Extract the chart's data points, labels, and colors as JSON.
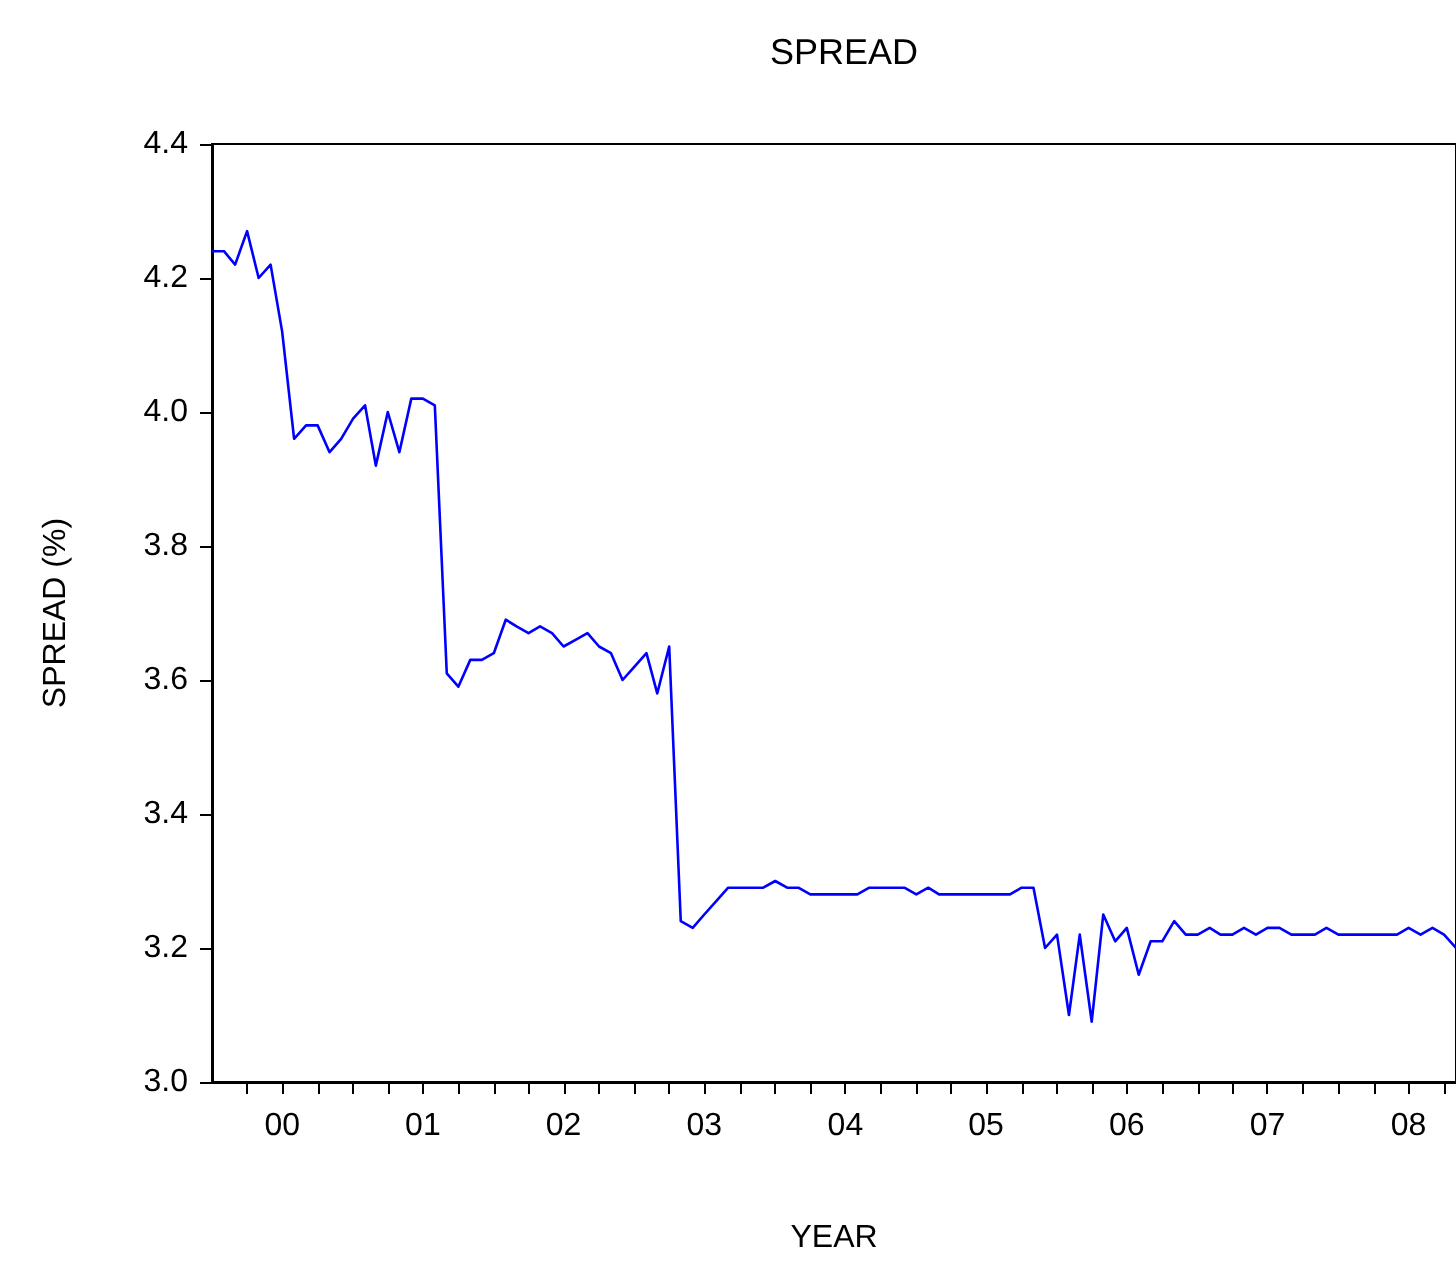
{
  "chart_data": {
    "type": "line",
    "title": "SPREAD",
    "xlabel": "YEAR",
    "ylabel": "SPREAD (%)",
    "xlim": [
      "2000-01",
      "2008-11"
    ],
    "xticks": [
      {
        "value": "2000-04",
        "label": null
      },
      {
        "value": "2000-07",
        "label": "00"
      },
      {
        "value": "2000-10",
        "label": null
      },
      {
        "value": "2001-01",
        "label": null
      },
      {
        "value": "2001-04",
        "label": null
      },
      {
        "value": "2001-07",
        "label": "01"
      },
      {
        "value": "2001-10",
        "label": null
      },
      {
        "value": "2002-01",
        "label": null
      },
      {
        "value": "2002-04",
        "label": null
      },
      {
        "value": "2002-07",
        "label": "02"
      },
      {
        "value": "2002-10",
        "label": null
      },
      {
        "value": "2003-01",
        "label": null
      },
      {
        "value": "2003-04",
        "label": null
      },
      {
        "value": "2003-07",
        "label": "03"
      },
      {
        "value": "2003-10",
        "label": null
      },
      {
        "value": "2004-01",
        "label": null
      },
      {
        "value": "2004-04",
        "label": null
      },
      {
        "value": "2004-07",
        "label": "04"
      },
      {
        "value": "2004-10",
        "label": null
      },
      {
        "value": "2005-01",
        "label": null
      },
      {
        "value": "2005-04",
        "label": null
      },
      {
        "value": "2005-07",
        "label": "05"
      },
      {
        "value": "2005-10",
        "label": null
      },
      {
        "value": "2006-01",
        "label": null
      },
      {
        "value": "2006-04",
        "label": null
      },
      {
        "value": "2006-07",
        "label": "06"
      },
      {
        "value": "2006-10",
        "label": null
      },
      {
        "value": "2007-01",
        "label": null
      },
      {
        "value": "2007-04",
        "label": null
      },
      {
        "value": "2007-07",
        "label": "07"
      },
      {
        "value": "2007-10",
        "label": null
      },
      {
        "value": "2008-01",
        "label": null
      },
      {
        "value": "2008-04",
        "label": null
      },
      {
        "value": "2008-07",
        "label": "08"
      },
      {
        "value": "2008-10",
        "label": null
      }
    ],
    "ylim": [
      3.0,
      4.4
    ],
    "yticks": [
      {
        "value": 3.0,
        "label": "3.0"
      },
      {
        "value": 3.2,
        "label": "3.2"
      },
      {
        "value": 3.4,
        "label": "3.4"
      },
      {
        "value": 3.6,
        "label": "3.6"
      },
      {
        "value": 3.8,
        "label": "3.8"
      },
      {
        "value": 4.0,
        "label": "4.0"
      },
      {
        "value": 4.2,
        "label": "4.2"
      },
      {
        "value": 4.4,
        "label": "4.4"
      }
    ],
    "grid": false,
    "marker": "none",
    "line_style": "solid",
    "series": [
      {
        "color": "#0000ff",
        "x": [
          "2000-01",
          "2000-02",
          "2000-03",
          "2000-04",
          "2000-05",
          "2000-06",
          "2000-07",
          "2000-08",
          "2000-09",
          "2000-10",
          "2000-11",
          "2000-12",
          "2001-01",
          "2001-02",
          "2001-03",
          "2001-04",
          "2001-05",
          "2001-06",
          "2001-07",
          "2001-08",
          "2001-09",
          "2001-10",
          "2001-11",
          "2001-12",
          "2002-01",
          "2002-02",
          "2002-03",
          "2002-04",
          "2002-05",
          "2002-06",
          "2002-07",
          "2002-08",
          "2002-09",
          "2002-10",
          "2002-11",
          "2002-12",
          "2003-01",
          "2003-02",
          "2003-03",
          "2003-04",
          "2003-05",
          "2003-06",
          "2003-07",
          "2003-08",
          "2003-09",
          "2003-10",
          "2003-11",
          "2003-12",
          "2004-01",
          "2004-02",
          "2004-03",
          "2004-04",
          "2004-05",
          "2004-06",
          "2004-07",
          "2004-08",
          "2004-09",
          "2004-10",
          "2004-11",
          "2004-12",
          "2005-01",
          "2005-02",
          "2005-03",
          "2005-04",
          "2005-05",
          "2005-06",
          "2005-07",
          "2005-08",
          "2005-09",
          "2005-10",
          "2005-11",
          "2005-12",
          "2006-01",
          "2006-02",
          "2006-03",
          "2006-04",
          "2006-05",
          "2006-06",
          "2006-07",
          "2006-08",
          "2006-09",
          "2006-10",
          "2006-11",
          "2006-12",
          "2007-01",
          "2007-02",
          "2007-03",
          "2007-04",
          "2007-05",
          "2007-06",
          "2007-07",
          "2007-08",
          "2007-09",
          "2007-10",
          "2007-11",
          "2007-12",
          "2008-01",
          "2008-02",
          "2008-03",
          "2008-04",
          "2008-05",
          "2008-06",
          "2008-07",
          "2008-08",
          "2008-09",
          "2008-10",
          "2008-11"
        ],
        "values": [
          4.24,
          4.24,
          4.22,
          4.27,
          4.2,
          4.22,
          4.12,
          3.96,
          3.98,
          3.98,
          3.94,
          3.96,
          3.99,
          4.01,
          3.92,
          4.0,
          3.94,
          4.02,
          4.02,
          4.01,
          3.61,
          3.59,
          3.63,
          3.63,
          3.64,
          3.69,
          3.68,
          3.67,
          3.68,
          3.67,
          3.65,
          3.66,
          3.67,
          3.65,
          3.64,
          3.6,
          3.62,
          3.64,
          3.58,
          3.65,
          3.24,
          3.23,
          3.25,
          3.27,
          3.29,
          3.29,
          3.29,
          3.29,
          3.3,
          3.29,
          3.29,
          3.28,
          3.28,
          3.28,
          3.28,
          3.28,
          3.29,
          3.29,
          3.29,
          3.29,
          3.28,
          3.29,
          3.28,
          3.28,
          3.28,
          3.28,
          3.28,
          3.28,
          3.28,
          3.29,
          3.29,
          3.2,
          3.22,
          3.1,
          3.22,
          3.09,
          3.25,
          3.21,
          3.23,
          3.16,
          3.21,
          3.21,
          3.24,
          3.22,
          3.22,
          3.23,
          3.22,
          3.22,
          3.23,
          3.22,
          3.23,
          3.23,
          3.22,
          3.22,
          3.22,
          3.23,
          3.22,
          3.22,
          3.22,
          3.22,
          3.22,
          3.22,
          3.23,
          3.22,
          3.23,
          3.22,
          3.2
        ]
      }
    ]
  }
}
